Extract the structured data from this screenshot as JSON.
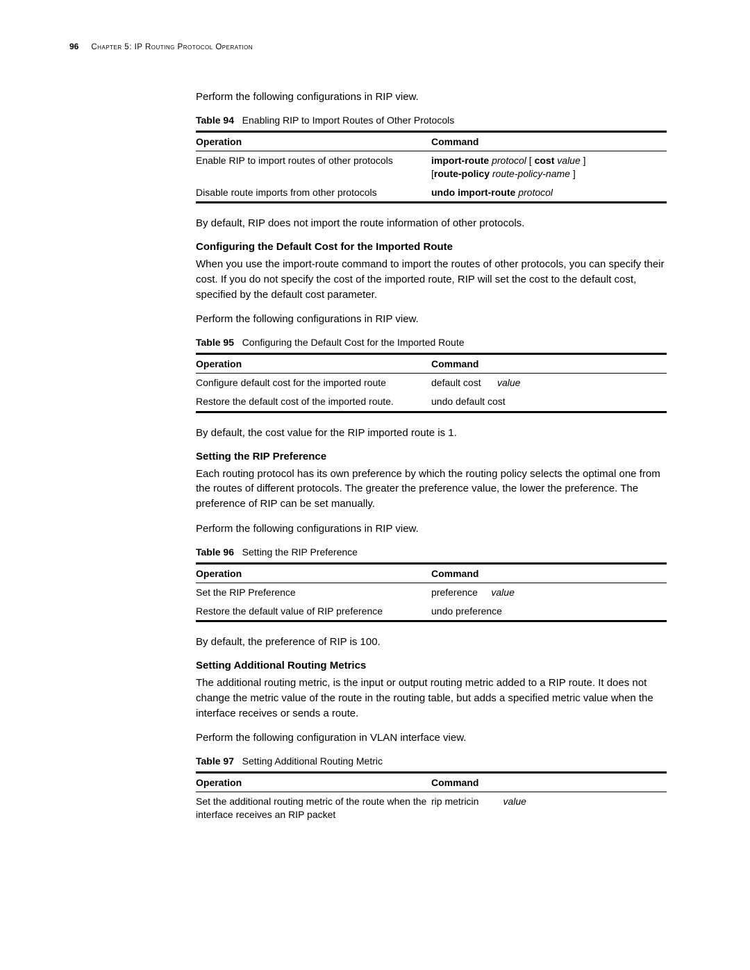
{
  "header": {
    "page_number": "96",
    "chapter": "Chapter 5: IP Routing Protocol Operation"
  },
  "intro_para_1": "Perform the following configurations in RIP view.",
  "table94": {
    "caption_label": "Table 94",
    "caption_text": "Enabling RIP to Import Routes of Other Protocols",
    "headers": {
      "op": "Operation",
      "cmd": "Command"
    },
    "rows": [
      {
        "op": "Enable RIP to import routes of other protocols",
        "cmd_b1": "import-route",
        "cmd_i1": "protocol",
        "cmd_l1": " [ ",
        "cmd_b2": "cost",
        "cmd_i2": "value",
        "cmd_l2": " ]",
        "cmd_line2_pre": "[",
        "cmd_line2_b": "route-policy",
        "cmd_line2_i": "route-policy-name",
        "cmd_line2_post": " ]"
      },
      {
        "op": "Disable route imports from other protocols",
        "cmd_b1": "undo import-route",
        "cmd_i1": "protocol"
      }
    ]
  },
  "para_after_t94": "By default, RIP does not import the route information of other protocols.",
  "sec1": {
    "heading": "Configuring the Default Cost for the Imported Route",
    "para1_pre": "When you use the ",
    "para1_code": "import-route",
    "para1_post": " command to import the routes of other protocols, you can specify their cost. If you do not specify the cost of the imported route, RIP will set the cost to the default cost, specified by the default cost parameter.",
    "para2": "Perform the following configurations in RIP view."
  },
  "table95": {
    "caption_label": "Table 95",
    "caption_text": "Configuring the Default Cost for the Imported Route",
    "headers": {
      "op": "Operation",
      "cmd": "Command"
    },
    "rows": [
      {
        "op": "Configure default cost for the imported route",
        "cmd_t": "default cost ",
        "cmd_i": "value"
      },
      {
        "op": "Restore the default cost of the imported route.",
        "cmd_t": "undo default cost"
      }
    ]
  },
  "para_after_t95": "By default, the cost value for the RIP imported route is 1.",
  "sec2": {
    "heading": "Setting the RIP Preference",
    "para1": "Each routing protocol has its own preference by which the routing policy selects the optimal one from the routes of different protocols. The greater the preference value, the lower the preference. The preference of RIP can be set manually.",
    "para2": "Perform the following configurations in RIP view."
  },
  "table96": {
    "caption_label": "Table 96",
    "caption_text": "Setting the RIP Preference",
    "headers": {
      "op": "Operation",
      "cmd": "Command"
    },
    "rows": [
      {
        "op": "Set the RIP Preference",
        "cmd_t": "preference ",
        "cmd_i": "value"
      },
      {
        "op": "Restore the default value of RIP preference",
        "cmd_t": "undo preference"
      }
    ]
  },
  "para_after_t96": "By default, the preference of RIP is 100.",
  "sec3": {
    "heading": "Setting Additional Routing Metrics",
    "para1": "The additional routing metric, is the input or output routing metric added to a RIP route. It does not change the metric value of the route in the routing table, but adds a specified metric value when the interface receives or sends a route.",
    "para2": "Perform the following configuration in VLAN interface view."
  },
  "table97": {
    "caption_label": "Table 97",
    "caption_text": "Setting Additional Routing Metric",
    "headers": {
      "op": "Operation",
      "cmd": "Command"
    },
    "rows": [
      {
        "op": "Set the additional routing metric of the route when the interface receives an RIP packet",
        "cmd_t": "rip metricin ",
        "cmd_i": "value"
      }
    ]
  }
}
